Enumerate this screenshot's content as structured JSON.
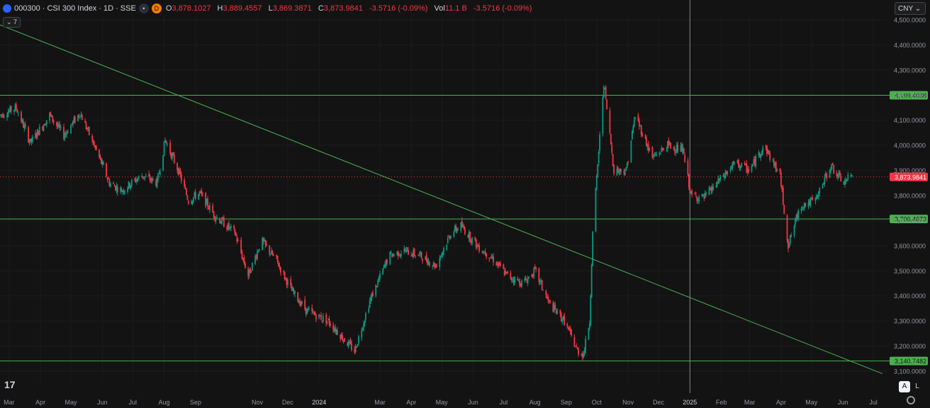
{
  "header": {
    "symbol": "000300 · CSI 300 Index · 1D · SSE",
    "badge_d": "D",
    "open_label": "O",
    "open_value": "3,878.1027",
    "high_label": "H",
    "high_value": "3,889.4557",
    "low_label": "L",
    "low_value": "3,869.3871",
    "close_label": "C",
    "close_value": "3,873.9841",
    "change": "-3.5716 (-0.09%)",
    "vol_label": "Vol",
    "vol_value": "11.1 B",
    "vol_change": "-3.5716 (-0.09%)"
  },
  "indicator_toggle": "7",
  "currency": "CNY",
  "scale_buttons": {
    "auto": "A",
    "log": "L"
  },
  "logo_text": "17",
  "colors": {
    "up": "#089981",
    "down": "#f23645",
    "line": "#4caf50",
    "bg": "#131313",
    "grid": "#1c1c1c"
  },
  "chart_data": {
    "type": "candlestick",
    "y_range": [
      3100,
      4500
    ],
    "y_ticks": [
      "4,500.0000",
      "4,400.0000",
      "4,300.0000",
      "4,200.0000",
      "4,100.0000",
      "4,000.0000",
      "3,900.0000",
      "3,800.0000",
      "3,700.0000",
      "3,600.0000",
      "3,500.0000",
      "3,400.0000",
      "3,300.0000",
      "3,200.0000",
      "3,100.0000"
    ],
    "x_range": [
      "2023-02-20",
      "2025-07-15"
    ],
    "x_ticks": [
      {
        "label": "Mar",
        "date": "2023-03-01"
      },
      {
        "label": "Apr",
        "date": "2023-04-01"
      },
      {
        "label": "May",
        "date": "2023-05-01"
      },
      {
        "label": "Jun",
        "date": "2023-06-01"
      },
      {
        "label": "Jul",
        "date": "2023-07-01"
      },
      {
        "label": "Aug",
        "date": "2023-08-01"
      },
      {
        "label": "Sep",
        "date": "2023-09-01"
      },
      {
        "label": "Nov",
        "date": "2023-11-01"
      },
      {
        "label": "Dec",
        "date": "2023-12-01"
      },
      {
        "label": "2024",
        "date": "2024-01-01"
      },
      {
        "label": "Mar",
        "date": "2024-03-01"
      },
      {
        "label": "Apr",
        "date": "2024-04-01"
      },
      {
        "label": "May",
        "date": "2024-05-01"
      },
      {
        "label": "Jun",
        "date": "2024-06-01"
      },
      {
        "label": "Jul",
        "date": "2024-07-01"
      },
      {
        "label": "Aug",
        "date": "2024-08-01"
      },
      {
        "label": "Sep",
        "date": "2024-09-01"
      },
      {
        "label": "Oct",
        "date": "2024-10-01"
      },
      {
        "label": "Nov",
        "date": "2024-11-01"
      },
      {
        "label": "Dec",
        "date": "2024-12-01"
      },
      {
        "label": "2025",
        "date": "2025-01-01"
      },
      {
        "label": "Feb",
        "date": "2025-02-01"
      },
      {
        "label": "Mar",
        "date": "2025-03-01"
      },
      {
        "label": "Apr",
        "date": "2025-04-01"
      },
      {
        "label": "May",
        "date": "2025-05-01"
      },
      {
        "label": "Jun",
        "date": "2025-06-01"
      },
      {
        "label": "Jul",
        "date": "2025-07-01"
      }
    ],
    "path_points": [
      [
        "2023-02-20",
        4120
      ],
      [
        "2023-03-08",
        4150
      ],
      [
        "2023-03-22",
        4010
      ],
      [
        "2023-04-10",
        4120
      ],
      [
        "2023-04-24",
        4040
      ],
      [
        "2023-05-10",
        4130
      ],
      [
        "2023-05-28",
        3960
      ],
      [
        "2023-06-08",
        3850
      ],
      [
        "2023-06-20",
        3820
      ],
      [
        "2023-07-10",
        3880
      ],
      [
        "2023-07-25",
        3850
      ],
      [
        "2023-08-02",
        4020
      ],
      [
        "2023-08-15",
        3900
      ],
      [
        "2023-08-25",
        3780
      ],
      [
        "2023-09-05",
        3810
      ],
      [
        "2023-09-20",
        3720
      ],
      [
        "2023-10-10",
        3650
      ],
      [
        "2023-10-23",
        3480
      ],
      [
        "2023-11-05",
        3620
      ],
      [
        "2023-11-20",
        3540
      ],
      [
        "2023-12-05",
        3420
      ],
      [
        "2023-12-20",
        3340
      ],
      [
        "2024-01-10",
        3300
      ],
      [
        "2024-01-25",
        3230
      ],
      [
        "2024-02-05",
        3180
      ],
      [
        "2024-02-20",
        3380
      ],
      [
        "2024-03-10",
        3560
      ],
      [
        "2024-03-25",
        3580
      ],
      [
        "2024-04-10",
        3560
      ],
      [
        "2024-04-25",
        3520
      ],
      [
        "2024-05-10",
        3650
      ],
      [
        "2024-05-20",
        3680
      ],
      [
        "2024-06-05",
        3600
      ],
      [
        "2024-06-20",
        3550
      ],
      [
        "2024-07-05",
        3480
      ],
      [
        "2024-07-20",
        3450
      ],
      [
        "2024-08-01",
        3500
      ],
      [
        "2024-08-15",
        3370
      ],
      [
        "2024-08-30",
        3300
      ],
      [
        "2024-09-12",
        3180
      ],
      [
        "2024-09-18",
        3170
      ],
      [
        "2024-09-24",
        3300
      ],
      [
        "2024-09-27",
        3650
      ],
      [
        "2024-10-08",
        4250
      ],
      [
        "2024-10-18",
        3900
      ],
      [
        "2024-10-30",
        3900
      ],
      [
        "2024-11-08",
        4120
      ],
      [
        "2024-11-25",
        3950
      ],
      [
        "2024-12-10",
        4000
      ],
      [
        "2024-12-25",
        3980
      ],
      [
        "2025-01-02",
        3800
      ],
      [
        "2025-01-15",
        3790
      ],
      [
        "2025-01-28",
        3850
      ],
      [
        "2025-02-15",
        3930
      ],
      [
        "2025-03-01",
        3900
      ],
      [
        "2025-03-15",
        4000
      ],
      [
        "2025-03-31",
        3880
      ],
      [
        "2025-04-08",
        3600
      ],
      [
        "2025-04-20",
        3760
      ],
      [
        "2025-05-05",
        3780
      ],
      [
        "2025-05-20",
        3920
      ],
      [
        "2025-06-01",
        3850
      ],
      [
        "2025-06-10",
        3880
      ]
    ],
    "candle_series_note": "daily OHLC candles, green up / red down",
    "horizontal_levels": [
      {
        "value": 4199.4038,
        "label": "4,199.4038"
      },
      {
        "value": 3706.4673,
        "label": "3,706.4673"
      },
      {
        "value": 3140.7482,
        "label": "3,140.7482"
      }
    ],
    "trendline": [
      [
        "2023-02-20",
        4480
      ],
      [
        "2025-07-10",
        3090
      ]
    ],
    "last_price": {
      "value": 3873.9841,
      "label": "3,873.9841"
    },
    "vertical_marker": "2025-01-01"
  }
}
